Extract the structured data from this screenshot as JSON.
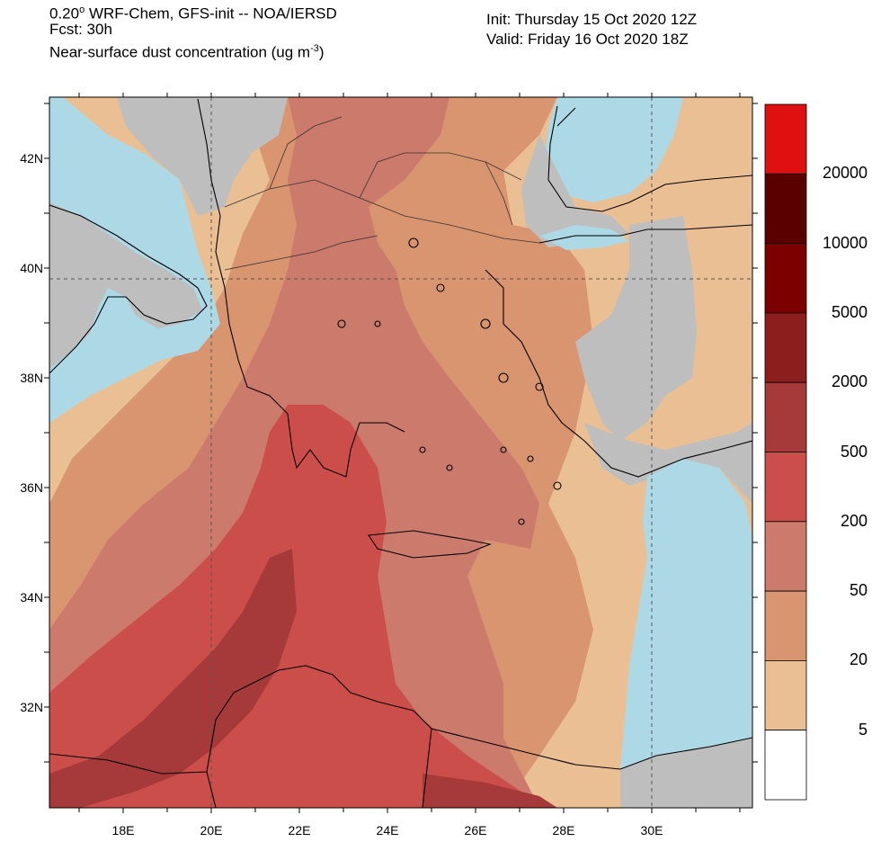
{
  "header": {
    "line1_pre": "0.20",
    "line1_deg": "o",
    "line1_post": " WRF-Chem, GFS-init -- NOA/IERSD",
    "line2": "Fcst: 30h",
    "line3_pre": "Near-surface dust concentration (ug m",
    "line3_sup": "-3",
    "line3_post": ")",
    "init": "Init: Thursday 15 Oct 2020  12Z",
    "valid": "Valid: Friday 16 Oct 2020  18Z"
  },
  "axes": {
    "lon_labels": [
      "18E",
      "20E",
      "22E",
      "24E",
      "26E",
      "28E",
      "30E"
    ],
    "lat_labels": [
      "42N",
      "40N",
      "38N",
      "36N",
      "34N",
      "32N"
    ]
  },
  "colorbar": {
    "labels": [
      "20000",
      "10000",
      "5000",
      "2000",
      "500",
      "200",
      "50",
      "20",
      "5"
    ],
    "colors": [
      "#de1010",
      "#5a0000",
      "#7c0000",
      "#8c1e1e",
      "#a63a3a",
      "#cc4e4a",
      "#cb7a6c",
      "#d99570",
      "#ebbf94",
      "#ffffff"
    ]
  },
  "colors": {
    "sea": "#add8e6",
    "land_nodata": "#bebebe",
    "level_5": "#ebbf94",
    "level_20": "#d99570",
    "level_50": "#cb7a6c",
    "level_200": "#cc4e4a",
    "level_500": "#a63a3a"
  }
}
